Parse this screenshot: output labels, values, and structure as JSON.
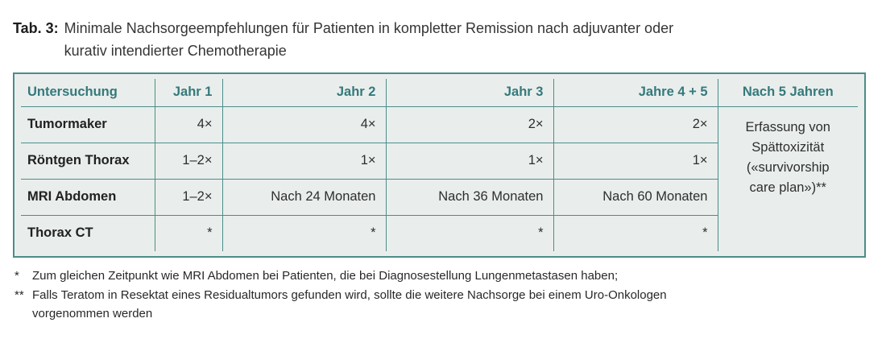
{
  "caption": {
    "label": "Tab. 3:",
    "line1": "Minimale Nachsorgeempfehlungen für Patienten in kompletter Remission nach adjuvanter oder",
    "line2": "kurativ intendierter Chemotherapie"
  },
  "table": {
    "headers": [
      "Untersuchung",
      "Jahr 1",
      "Jahr 2",
      "Jahr 3",
      "Jahre 4 + 5",
      "Nach 5 Jahren"
    ],
    "rows": [
      {
        "label": "Tumormaker",
        "values": [
          "4×",
          "4×",
          "2×",
          "2×"
        ]
      },
      {
        "label": "Röntgen Thorax",
        "values": [
          "1–2×",
          "1×",
          "1×",
          "1×"
        ]
      },
      {
        "label": "MRI Abdomen",
        "values": [
          "1–2×",
          "Nach 24 Monaten",
          "Nach 36 Monaten",
          "Nach 60 Monaten"
        ]
      },
      {
        "label": "Thorax CT",
        "values": [
          "*",
          "*",
          "*",
          "*"
        ]
      }
    ],
    "merged_cell": {
      "line1": "Erfassung von",
      "line2": "Spättoxizität",
      "line3": "(«survivorship",
      "line4": "care plan»)**"
    }
  },
  "footnotes": [
    {
      "marker": "*",
      "line1": "Zum gleichen Zeitpunkt wie MRI Abdomen bei Patienten, die bei Diagnosestellung Lungenmetastasen haben;",
      "line2": ""
    },
    {
      "marker": "**",
      "line1": "Falls Teratom in Resektat eines Residualtumors gefunden wird, sollte die weitere Nachsorge bei einem Uro-Onkologen",
      "line2": "vorgenommen werden"
    }
  ],
  "colors": {
    "accent_teal": "#4d8d8a",
    "header_text": "#35797b",
    "table_background": "#e9eeec",
    "body_text": "#2e2e2e"
  }
}
